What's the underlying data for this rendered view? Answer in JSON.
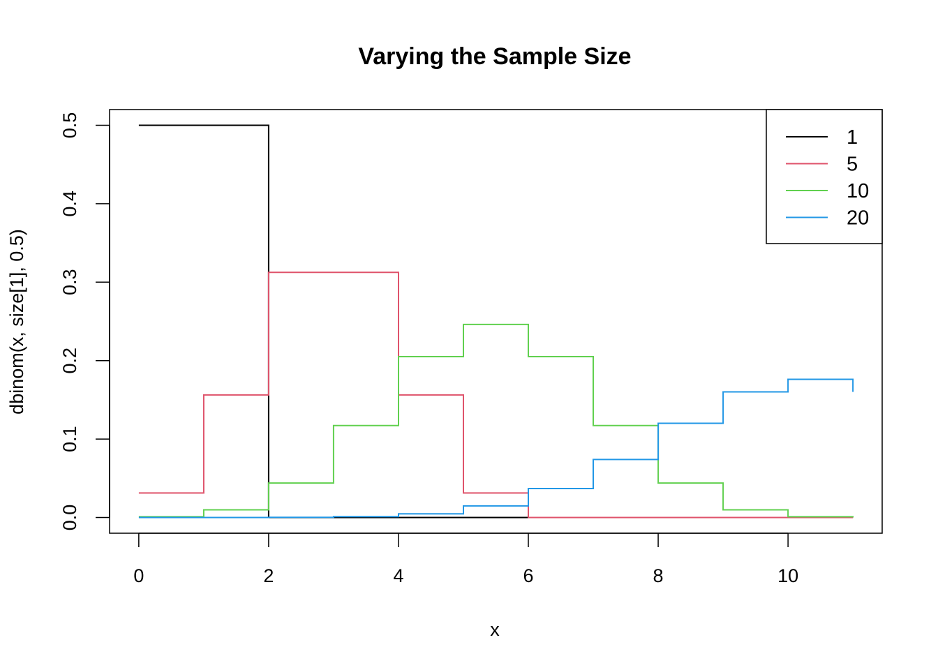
{
  "chart_data": {
    "type": "line",
    "title": "Varying the Sample Size",
    "xlabel": "x",
    "ylabel": "dbinom(x, size[1], 0.5)",
    "xlim": [
      -0.45,
      11.45
    ],
    "ylim": [
      -0.02,
      0.52
    ],
    "x_ticks": [
      "0",
      "2",
      "4",
      "6",
      "8",
      "10"
    ],
    "y_ticks": [
      "0.0",
      "0.1",
      "0.2",
      "0.3",
      "0.4",
      "0.5"
    ],
    "grid": false,
    "legend_position": "top-right",
    "step": "post",
    "x": [
      0,
      1,
      2,
      3,
      4,
      5,
      6,
      7,
      8,
      9,
      10,
      11
    ],
    "series": [
      {
        "name": "1",
        "color": "#000000",
        "values": [
          0.5,
          0.5,
          0,
          0,
          0,
          0,
          0,
          0,
          0,
          0,
          0,
          0
        ]
      },
      {
        "name": "5",
        "color": "#DF536B",
        "values": [
          0.03125,
          0.15625,
          0.3125,
          0.3125,
          0.15625,
          0.03125,
          0,
          0,
          0,
          0,
          0,
          0
        ]
      },
      {
        "name": "10",
        "color": "#61D04F",
        "values": [
          0.00098,
          0.00977,
          0.04395,
          0.11719,
          0.20508,
          0.24609,
          0.20508,
          0.11719,
          0.04395,
          0.00977,
          0.00098,
          0
        ]
      },
      {
        "name": "20",
        "color": "#2297E6",
        "values": [
          0,
          0,
          0.0002,
          0.0011,
          0.00462,
          0.01479,
          0.03696,
          0.07393,
          0.12013,
          0.16018,
          0.1762,
          0.16018
        ]
      }
    ]
  }
}
